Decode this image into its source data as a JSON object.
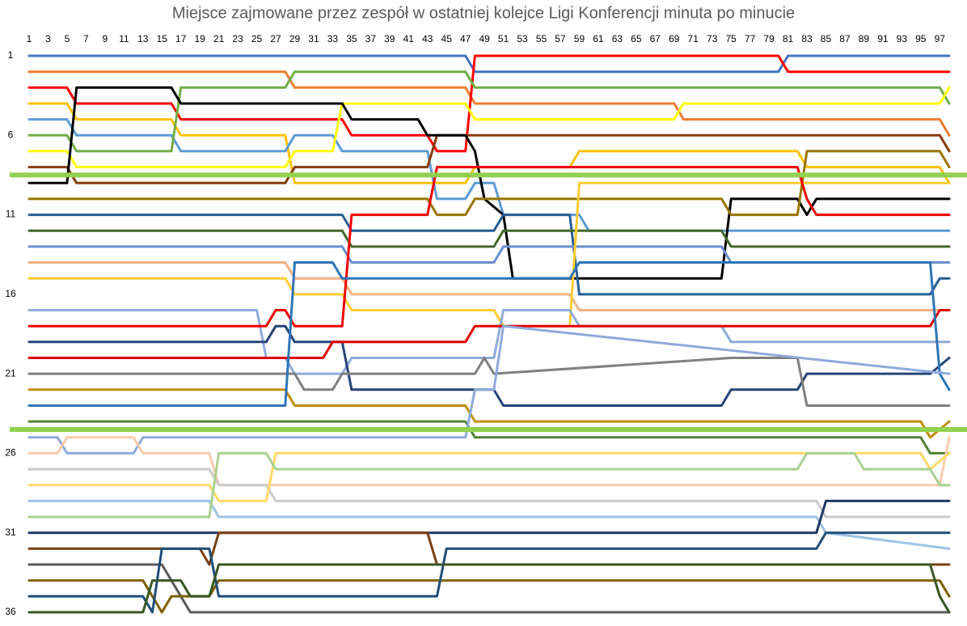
{
  "chart_data": {
    "type": "line",
    "title": "Miejsce zajmowane przez zespół w ostatniej kolejce Ligi Konferencji minuta po minucie",
    "xlim": [
      1,
      98
    ],
    "ylim": [
      1,
      36
    ],
    "y_inverted": true,
    "x_axis_position": "top",
    "xticks": [
      1,
      3,
      5,
      7,
      9,
      11,
      13,
      15,
      17,
      19,
      21,
      23,
      25,
      27,
      29,
      31,
      33,
      35,
      37,
      39,
      41,
      43,
      45,
      47,
      49,
      51,
      53,
      55,
      57,
      59,
      61,
      63,
      65,
      67,
      69,
      71,
      73,
      75,
      77,
      79,
      81,
      83,
      85,
      87,
      89,
      91,
      93,
      95,
      97
    ],
    "yticks": [
      1,
      6,
      11,
      16,
      21,
      26,
      31,
      36
    ],
    "reference_lines": [
      {
        "value": 8.5,
        "color": "#92d050"
      },
      {
        "value": 24.5,
        "color": "#92d050"
      }
    ],
    "series": [
      {
        "color": "#4472c4",
        "x": [
          1,
          47,
          48,
          80,
          81,
          98
        ],
        "values": [
          1,
          1,
          2,
          2,
          1,
          1
        ]
      },
      {
        "color": "#ed7d31",
        "x": [
          1,
          28,
          29,
          47,
          48,
          69,
          70,
          97,
          98
        ],
        "values": [
          2,
          2,
          3,
          3,
          4,
          4,
          5,
          5,
          6
        ]
      },
      {
        "color": "#ff0000",
        "x": [
          1,
          5,
          6,
          16,
          17,
          34,
          35,
          43,
          44,
          47,
          48,
          80,
          81,
          98
        ],
        "values": [
          3,
          3,
          4,
          4,
          5,
          5,
          6,
          6,
          7,
          7,
          1,
          1,
          2,
          2
        ]
      },
      {
        "color": "#ffc000",
        "x": [
          1,
          5,
          6,
          16,
          17,
          28,
          29,
          47,
          48,
          58,
          59,
          82,
          83,
          97,
          98
        ],
        "values": [
          4,
          4,
          5,
          5,
          6,
          6,
          9,
          9,
          8,
          8,
          7,
          7,
          8,
          8,
          9
        ]
      },
      {
        "color": "#5b9bd5",
        "x": [
          1,
          5,
          6,
          16,
          17,
          28,
          29,
          33,
          34,
          43,
          44,
          47,
          48,
          50,
          51,
          59,
          60,
          98
        ],
        "values": [
          5,
          5,
          6,
          6,
          7,
          7,
          6,
          6,
          7,
          7,
          10,
          10,
          9,
          9,
          11,
          11,
          12,
          12
        ]
      },
      {
        "color": "#70ad47",
        "x": [
          1,
          5,
          6,
          16,
          17,
          28,
          29,
          47,
          48,
          97,
          98
        ],
        "values": [
          6,
          6,
          7,
          7,
          3,
          3,
          2,
          2,
          3,
          3,
          4
        ]
      },
      {
        "color": "#ffff00",
        "x": [
          1,
          5,
          6,
          28,
          29,
          33,
          34,
          47,
          48,
          69,
          70,
          97,
          98
        ],
        "values": [
          7,
          7,
          8,
          8,
          7,
          7,
          4,
          4,
          5,
          5,
          4,
          4,
          3
        ]
      },
      {
        "color": "#843c0c",
        "x": [
          1,
          5,
          6,
          28,
          29,
          43,
          44,
          47,
          48,
          97,
          98
        ],
        "values": [
          8,
          8,
          9,
          9,
          8,
          8,
          6,
          6,
          6,
          6,
          7
        ]
      },
      {
        "color": "#000000",
        "x": [
          1,
          5,
          6,
          16,
          17,
          34,
          35,
          42,
          43,
          47,
          48,
          49,
          51,
          52,
          74,
          75,
          82,
          83,
          84,
          98
        ],
        "values": [
          9,
          9,
          3,
          3,
          4,
          4,
          5,
          5,
          6,
          6,
          7,
          10,
          11,
          15,
          15,
          10,
          10,
          11,
          10,
          10
        ]
      },
      {
        "color": "#997300",
        "x": [
          1,
          43,
          44,
          47,
          48,
          66,
          67,
          74,
          75,
          82,
          83,
          97,
          98
        ],
        "values": [
          10,
          10,
          11,
          11,
          10,
          10,
          10,
          10,
          11,
          11,
          7,
          7,
          8
        ]
      },
      {
        "color": "#255e91",
        "x": [
          1,
          34,
          35,
          50,
          51,
          58,
          59,
          96,
          97,
          98
        ],
        "values": [
          11,
          11,
          12,
          12,
          11,
          11,
          16,
          16,
          15,
          15
        ]
      },
      {
        "color": "#43682b",
        "x": [
          1,
          34,
          35,
          50,
          51,
          74,
          75,
          98
        ],
        "values": [
          12,
          12,
          13,
          13,
          12,
          12,
          13,
          13
        ]
      },
      {
        "color": "#698ed0",
        "x": [
          1,
          34,
          35,
          50,
          51,
          74,
          75,
          98
        ],
        "values": [
          13,
          13,
          14,
          14,
          13,
          13,
          14,
          14
        ]
      },
      {
        "color": "#f4b183",
        "x": [
          1,
          28,
          29,
          34,
          35,
          58,
          59,
          97,
          98
        ],
        "values": [
          14,
          14,
          15,
          15,
          16,
          16,
          17,
          17,
          17
        ]
      },
      {
        "color": "#ffcc33",
        "x": [
          1,
          28,
          29,
          34,
          35,
          50,
          51,
          58,
          59,
          98
        ],
        "values": [
          15,
          15,
          16,
          16,
          17,
          17,
          18,
          18,
          9,
          9
        ]
      },
      {
        "color": "#8faadc",
        "x": [
          1,
          25,
          26,
          28,
          29,
          34,
          35,
          50,
          51,
          58,
          59,
          74,
          75,
          98
        ],
        "values": [
          17,
          17,
          20,
          20,
          21,
          21,
          20,
          20,
          17,
          17,
          18,
          18,
          19,
          19
        ]
      },
      {
        "color": "#ee0000",
        "x": [
          1,
          26,
          27,
          28,
          29,
          34,
          35,
          43,
          44,
          82,
          83,
          84,
          98
        ],
        "values": [
          18,
          18,
          17,
          17,
          18,
          18,
          11,
          11,
          8,
          8,
          10,
          11,
          11
        ]
      },
      {
        "color": "#264478",
        "x": [
          1,
          26,
          27,
          28,
          29,
          34,
          35,
          50,
          51,
          74,
          75,
          82,
          83,
          96,
          98
        ],
        "values": [
          19,
          19,
          18,
          18,
          19,
          19,
          22,
          22,
          23,
          23,
          22,
          22,
          21,
          21,
          20
        ]
      },
      {
        "color": "#e00000",
        "x": [
          1,
          28,
          29,
          32,
          33,
          47,
          48,
          96,
          97,
          98
        ],
        "values": [
          20,
          20,
          20,
          20,
          19,
          19,
          18,
          18,
          17,
          17
        ]
      },
      {
        "color": "#7f7f7f",
        "x": [
          1,
          29,
          30,
          33,
          34,
          48,
          49,
          50,
          75,
          82,
          83,
          98
        ],
        "values": [
          21,
          21,
          22,
          22,
          21,
          21,
          20,
          21,
          20,
          20,
          23,
          23
        ]
      },
      {
        "color": "#bf9000",
        "x": [
          1,
          28,
          29,
          47,
          48,
          95,
          96,
          98
        ],
        "values": [
          22,
          22,
          23,
          23,
          24,
          24,
          25,
          24
        ]
      },
      {
        "color": "#2e75b6",
        "x": [
          1,
          28,
          29,
          33,
          34,
          58,
          59,
          96,
          97,
          98
        ],
        "values": [
          23,
          23,
          14,
          14,
          15,
          15,
          14,
          14,
          21,
          22
        ]
      },
      {
        "color": "#548235",
        "x": [
          1,
          47,
          48,
          95,
          96,
          98
        ],
        "values": [
          24,
          24,
          25,
          25,
          26,
          26
        ]
      },
      {
        "color": "#8eaadb",
        "x": [
          1,
          4,
          5,
          12,
          13,
          47,
          48,
          50,
          51,
          98
        ],
        "values": [
          25,
          25,
          26,
          26,
          25,
          25,
          22,
          22,
          18,
          21
        ]
      },
      {
        "color": "#f8cbad",
        "x": [
          1,
          4,
          5,
          12,
          13,
          20,
          21,
          97,
          98
        ],
        "values": [
          26,
          26,
          25,
          25,
          26,
          26,
          28,
          28,
          25
        ]
      },
      {
        "color": "#c9c9c9",
        "x": [
          1,
          20,
          21,
          26,
          27,
          84,
          85,
          98
        ],
        "values": [
          27,
          27,
          28,
          28,
          29,
          29,
          30,
          30
        ]
      },
      {
        "color": "#ffd966",
        "x": [
          1,
          20,
          21,
          26,
          27,
          95,
          96,
          98
        ],
        "values": [
          28,
          28,
          29,
          29,
          26,
          26,
          27,
          26
        ]
      },
      {
        "color": "#9dc3e6",
        "x": [
          1,
          20,
          21,
          84,
          85,
          98
        ],
        "values": [
          29,
          29,
          30,
          30,
          31,
          32
        ]
      },
      {
        "color": "#a9d18e",
        "x": [
          1,
          20,
          21,
          26,
          27,
          82,
          83,
          88,
          89,
          96,
          97,
          98
        ],
        "values": [
          30,
          30,
          26,
          26,
          27,
          27,
          26,
          26,
          27,
          27,
          28,
          28
        ]
      },
      {
        "color": "#1f3864",
        "x": [
          1,
          84,
          85,
          98
        ],
        "values": [
          31,
          31,
          29,
          29
        ]
      },
      {
        "color": "#7b3f10",
        "x": [
          1,
          19,
          20,
          21,
          43,
          44,
          98
        ],
        "values": [
          32,
          32,
          33,
          31,
          31,
          33,
          33
        ]
      },
      {
        "color": "#595959",
        "x": [
          1,
          15,
          16,
          17,
          18,
          98
        ],
        "values": [
          33,
          33,
          34,
          35,
          36,
          36
        ]
      },
      {
        "color": "#7f6000",
        "x": [
          1,
          13,
          14,
          15,
          16,
          20,
          21,
          97,
          98
        ],
        "values": [
          34,
          34,
          35,
          36,
          35,
          35,
          34,
          34,
          35
        ]
      },
      {
        "color": "#1f4e79",
        "x": [
          1,
          13,
          14,
          15,
          20,
          21,
          44,
          45,
          84,
          85,
          98
        ],
        "values": [
          35,
          35,
          36,
          32,
          32,
          35,
          35,
          32,
          32,
          31,
          31
        ]
      },
      {
        "color": "#375623",
        "x": [
          1,
          13,
          14,
          17,
          18,
          20,
          21,
          96,
          97,
          98
        ],
        "values": [
          36,
          36,
          34,
          34,
          35,
          35,
          33,
          33,
          35,
          36
        ]
      }
    ]
  }
}
